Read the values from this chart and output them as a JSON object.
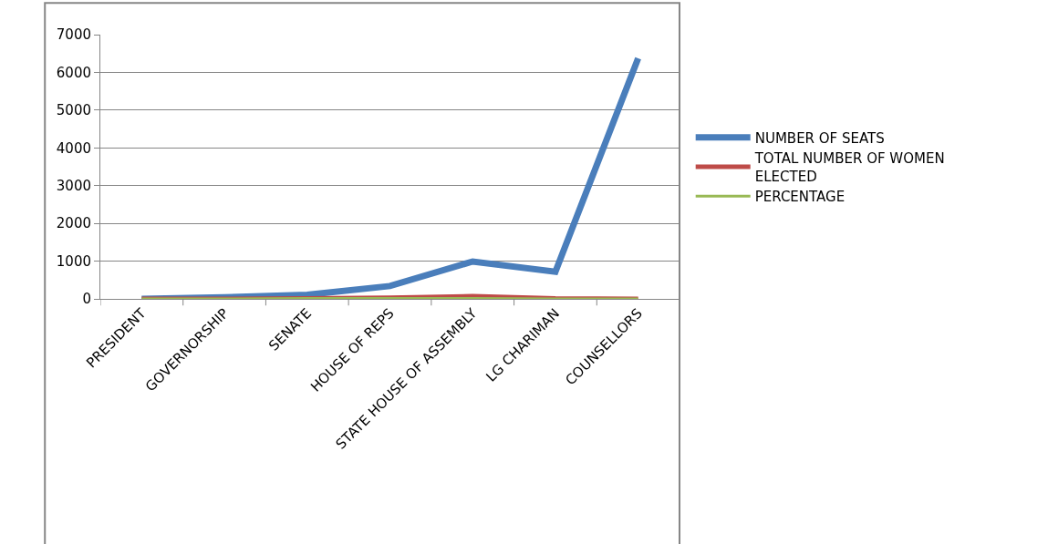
{
  "chart_data": {
    "type": "line",
    "categories": [
      "PRESIDENT",
      "GOVERNORSHIP",
      "SENATE",
      "HOUSE OF REPS",
      "STATE HOUSE OF ASSEMBLY",
      "LG CHARIMAN",
      "COUNSELLORS"
    ],
    "series": [
      {
        "name": "NUMBER OF SEATS",
        "color": "#4a7ebb",
        "values": [
          0,
          40,
          110,
          340,
          990,
          720,
          6370
        ]
      },
      {
        "name": "TOTAL NUMBER OF WOMEN ELECTED",
        "color": "#be4b48",
        "values": [
          0,
          0,
          10,
          30,
          70,
          10,
          0
        ]
      },
      {
        "name": "PERCENTAGE",
        "color": "#98b954",
        "values": [
          0,
          0,
          10,
          10,
          10,
          0,
          0
        ]
      }
    ],
    "ylim": [
      0,
      7000
    ],
    "yticks": [
      0,
      1000,
      2000,
      3000,
      4000,
      5000,
      6000,
      7000
    ],
    "grid": "y",
    "legend": "right",
    "marker": "none",
    "line_style": "solid"
  }
}
